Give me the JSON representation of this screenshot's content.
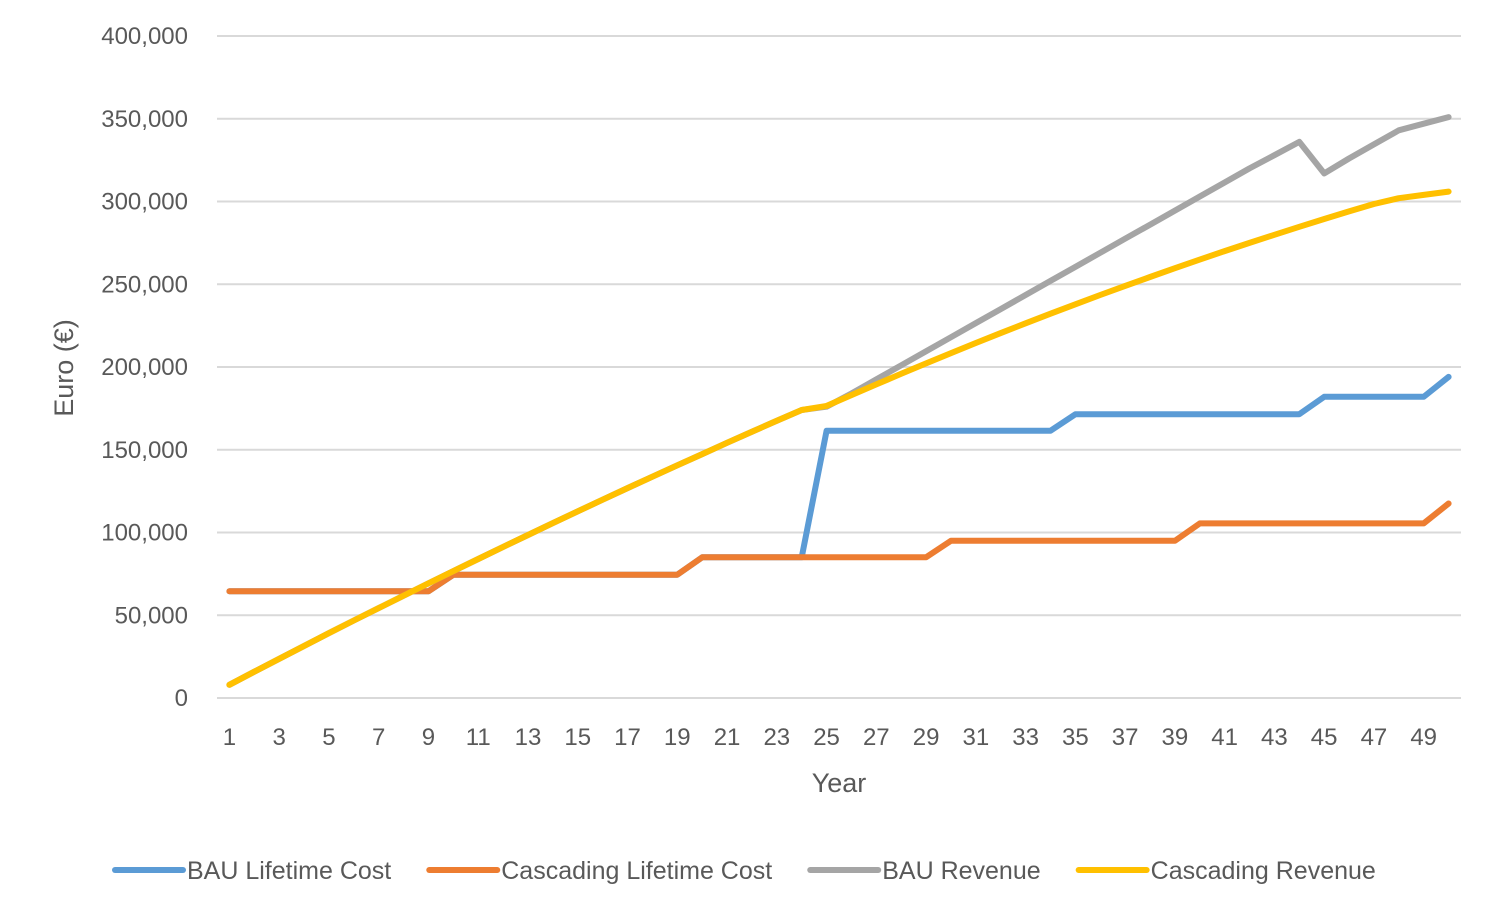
{
  "chart_data": {
    "type": "line",
    "title": "",
    "xlabel": "Year",
    "ylabel": "Euro (€)",
    "ylim": [
      0,
      400000
    ],
    "y_ticks": [
      0,
      50000,
      100000,
      150000,
      200000,
      250000,
      300000,
      350000,
      400000
    ],
    "y_tick_labels": [
      "0",
      "50,000",
      "100,000",
      "150,000",
      "200,000",
      "250,000",
      "300,000",
      "350,000",
      "400,000"
    ],
    "x_tick_labels": [
      "1",
      "3",
      "5",
      "7",
      "9",
      "11",
      "13",
      "15",
      "17",
      "19",
      "21",
      "23",
      "25",
      "27",
      "29",
      "31",
      "33",
      "35",
      "37",
      "39",
      "41",
      "43",
      "45",
      "47",
      "49"
    ],
    "x": [
      1,
      2,
      3,
      4,
      5,
      6,
      7,
      8,
      9,
      10,
      11,
      12,
      13,
      14,
      15,
      16,
      17,
      18,
      19,
      20,
      21,
      22,
      23,
      24,
      25,
      26,
      27,
      28,
      29,
      30,
      31,
      32,
      33,
      34,
      35,
      36,
      37,
      38,
      39,
      40,
      41,
      42,
      43,
      44,
      45,
      46,
      47,
      48,
      49,
      50
    ],
    "legend_position": "bottom",
    "grid": true,
    "series": [
      {
        "name": "BAU Lifetime Cost",
        "color": "#5b9bd5",
        "values": [
          64500,
          64500,
          64500,
          64500,
          64500,
          64500,
          64500,
          64500,
          64500,
          74500,
          74500,
          74500,
          74500,
          74500,
          74500,
          74500,
          74500,
          74500,
          74500,
          85000,
          85000,
          85000,
          85000,
          85000,
          161500,
          161500,
          161500,
          161500,
          161500,
          161500,
          161500,
          161500,
          161500,
          161500,
          171500,
          171500,
          171500,
          171500,
          171500,
          171500,
          171500,
          171500,
          171500,
          171500,
          182000,
          182000,
          182000,
          182000,
          182000,
          194000
        ]
      },
      {
        "name": "Cascading Lifetime Cost",
        "color": "#ed7d31",
        "values": [
          64500,
          64500,
          64500,
          64500,
          64500,
          64500,
          64500,
          64500,
          64500,
          74500,
          74500,
          74500,
          74500,
          74500,
          74500,
          74500,
          74500,
          74500,
          74500,
          85000,
          85000,
          85000,
          85000,
          85000,
          85000,
          85000,
          85000,
          85000,
          85000,
          95000,
          95000,
          95000,
          95000,
          95000,
          95000,
          95000,
          95000,
          95000,
          95000,
          105500,
          105500,
          105500,
          105500,
          105500,
          105500,
          105500,
          105500,
          105500,
          105500,
          117500
        ]
      },
      {
        "name": "BAU Revenue",
        "color": "#a5a5a5",
        "values": [
          8000,
          15900,
          23700,
          31500,
          39200,
          46800,
          54300,
          61800,
          69300,
          76700,
          84000,
          91300,
          98500,
          105700,
          112800,
          119800,
          126800,
          133700,
          140600,
          147400,
          154200,
          160900,
          167500,
          174000,
          176000,
          184000,
          192500,
          201000,
          209500,
          218000,
          226500,
          235000,
          243500,
          252000,
          260500,
          269000,
          277500,
          286000,
          294500,
          303000,
          311500,
          320000,
          328000,
          336000,
          317000,
          326000,
          334500,
          343000,
          347000,
          351000
        ]
      },
      {
        "name": "Cascading Revenue",
        "color": "#ffc000",
        "values": [
          8000,
          15900,
          23700,
          31500,
          39200,
          46800,
          54300,
          61800,
          69300,
          76700,
          84000,
          91300,
          98500,
          105700,
          112800,
          119800,
          126800,
          133700,
          140600,
          147400,
          154200,
          160900,
          167500,
          174000,
          176500,
          183000,
          189500,
          195900,
          202200,
          208400,
          214500,
          220500,
          226400,
          232200,
          237900,
          243500,
          249000,
          254400,
          259700,
          264900,
          270000,
          275000,
          279900,
          284700,
          289400,
          294000,
          298500,
          302000,
          304000,
          306000
        ]
      }
    ]
  }
}
